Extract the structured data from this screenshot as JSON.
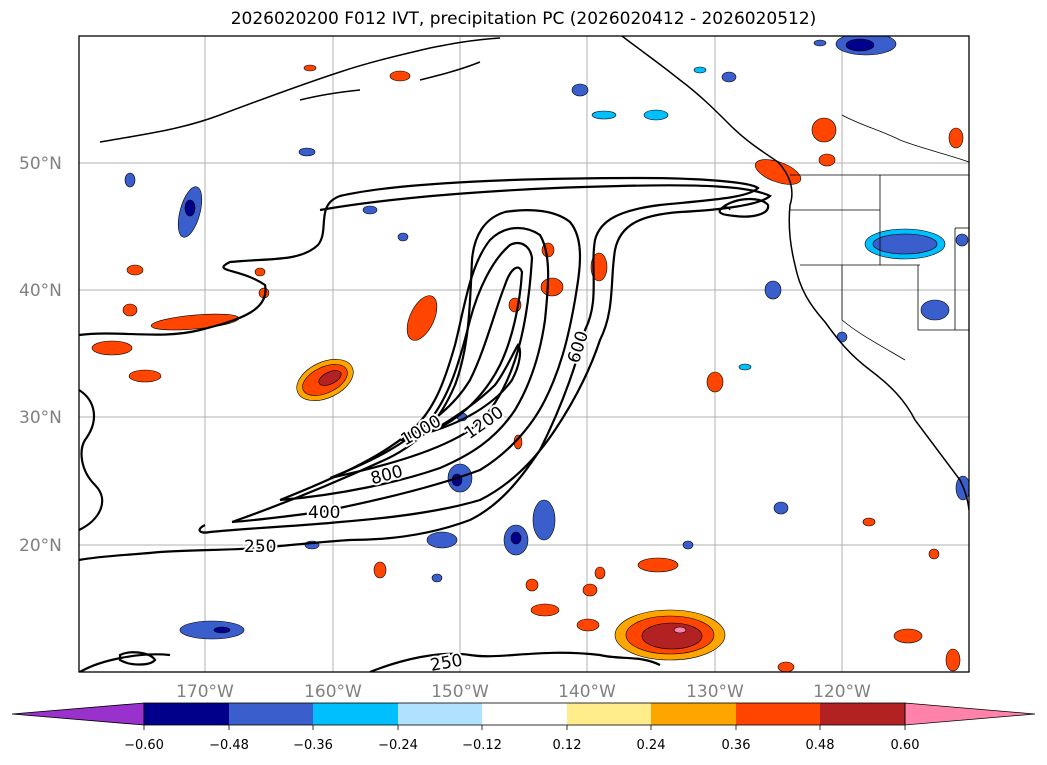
{
  "title": "2026020200 F012 IVT, precipitation PC (2026020412 - 2026020512)",
  "axes": {
    "lat_labels": [
      "50°N",
      "40°N",
      "30°N",
      "20°N"
    ],
    "lon_labels": [
      "170°W",
      "160°W",
      "150°W",
      "140°W",
      "130°W",
      "120°W"
    ]
  },
  "contour_labels": [
    "1000",
    "1200",
    "800",
    "600",
    "400",
    "250",
    "250"
  ],
  "colorbar": {
    "tick_labels": [
      "−0.60",
      "−0.48",
      "−0.36",
      "−0.24",
      "−0.12",
      "0.12",
      "0.24",
      "0.36",
      "0.48",
      "0.60"
    ],
    "colors": [
      "#9932CC",
      "#00008B",
      "#3A5FCD",
      "#00BFFF",
      "#B0E2FF",
      "#FFFFFF",
      "#FFEC8B",
      "#FFA500",
      "#FF4500",
      "#B22222",
      "#FF82AB"
    ]
  }
}
